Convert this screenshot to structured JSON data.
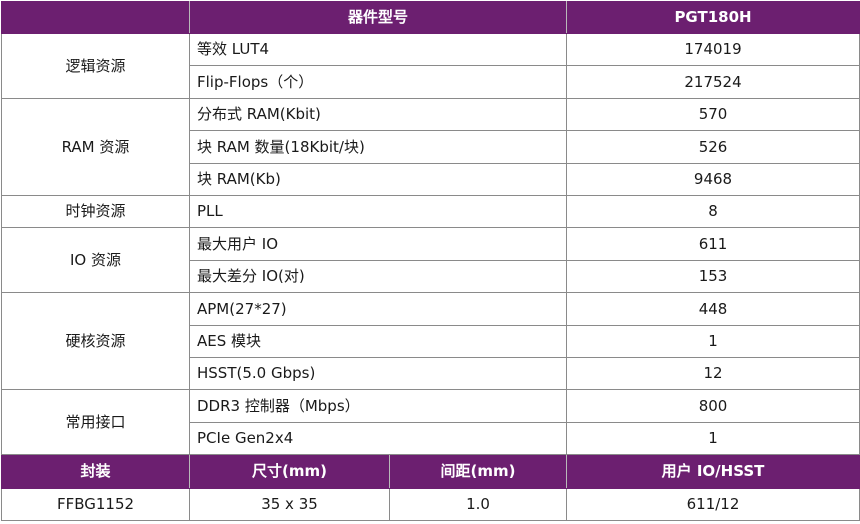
{
  "header": {
    "device_label": "器件型号",
    "model": "PGT180H"
  },
  "groups": [
    {
      "name": "逻辑资源",
      "items": [
        {
          "label": "等效 LUT4",
          "value": "174019"
        },
        {
          "label": "Flip-Flops（个）",
          "value": "217524"
        }
      ]
    },
    {
      "name": "RAM 资源",
      "items": [
        {
          "label": "分布式 RAM(Kbit)",
          "value": "570"
        },
        {
          "label": "块 RAM 数量(18Kbit/块)",
          "value": "526"
        },
        {
          "label": "块 RAM(Kb)",
          "value": "9468"
        }
      ]
    },
    {
      "name": "时钟资源",
      "items": [
        {
          "label": "PLL",
          "value": "8"
        }
      ]
    },
    {
      "name": "IO 资源",
      "items": [
        {
          "label": "最大用户 IO",
          "value": "611"
        },
        {
          "label": "最大差分 IO(对)",
          "value": "153"
        }
      ]
    },
    {
      "name": "硬核资源",
      "items": [
        {
          "label": "APM(27*27)",
          "value": "448"
        },
        {
          "label": "AES 模块",
          "value": "1"
        },
        {
          "label": "HSST(5.0 Gbps)",
          "value": "12"
        }
      ]
    },
    {
      "name": "常用接口",
      "items": [
        {
          "label": "DDR3 控制器（Mbps）",
          "value": "800"
        },
        {
          "label": "PCIe Gen2x4",
          "value": "1"
        }
      ]
    }
  ],
  "package": {
    "headers": [
      "封装",
      "尺寸(mm)",
      "间距(mm)",
      "用户 IO/HSST"
    ],
    "row": [
      "FFBG1152",
      "35 x 35",
      "1.0",
      "611/12"
    ]
  },
  "colors": {
    "header_bg": "#6c1f70",
    "header_text": "#ffffff",
    "border": "#8a8a8a"
  }
}
